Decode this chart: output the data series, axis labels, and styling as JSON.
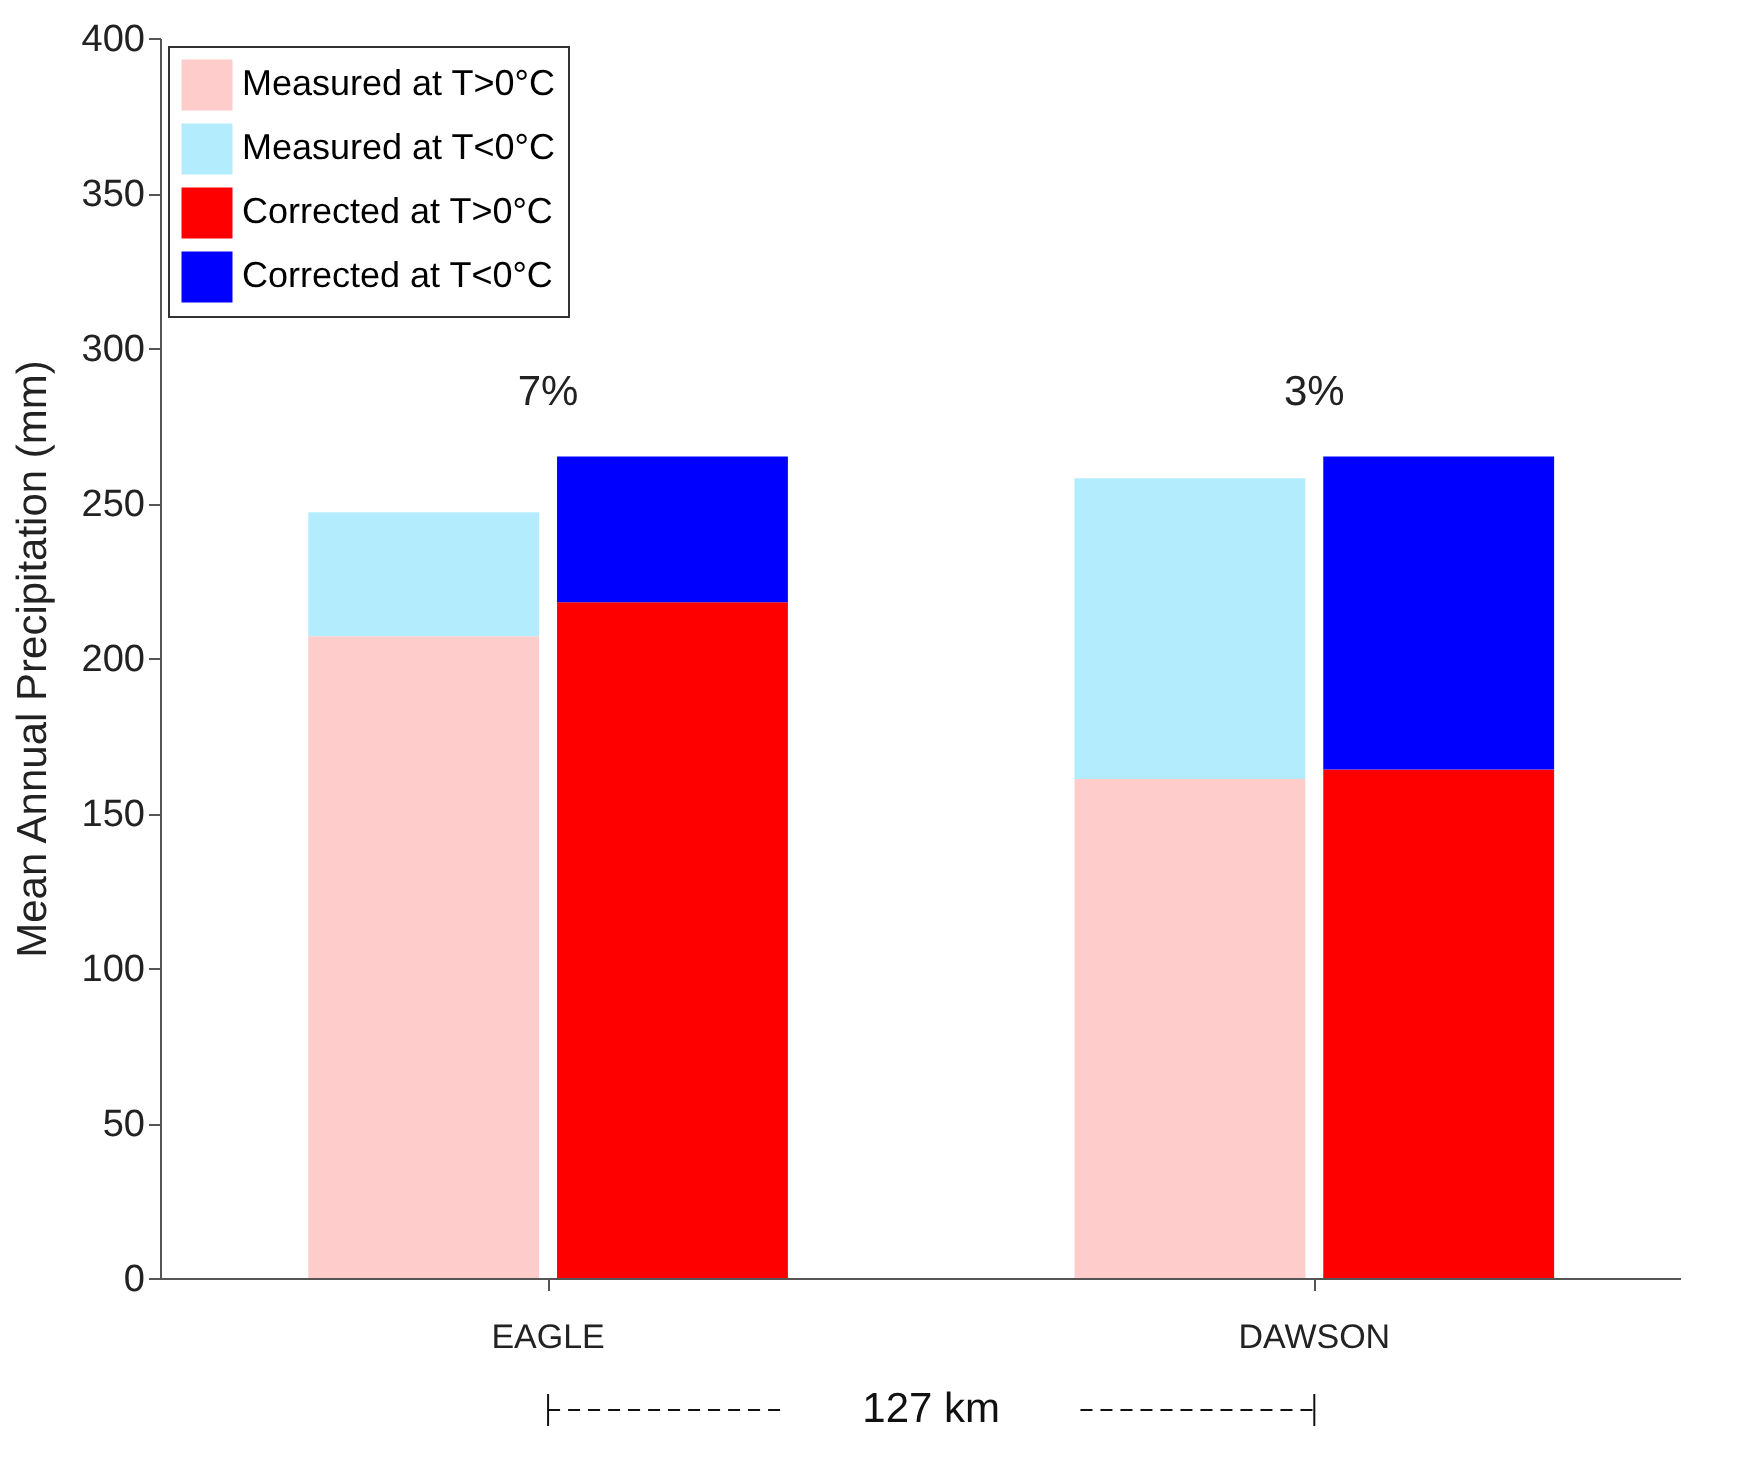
{
  "chart_data": {
    "type": "bar",
    "stacked": true,
    "ylabel": "Mean Annual Precipitation (mm)",
    "categories": [
      null,
      null,
      null,
      null
    ],
    "series": [
      {
        "name": "Measured at T>0°C",
        "color": "#ffcccc",
        "values": [
          207,
          null,
          161,
          null
        ]
      },
      {
        "name": "Measured at T<0°C",
        "color": "#b3ecfc",
        "values": [
          40,
          null,
          97,
          null
        ]
      },
      {
        "name": "Corrected at T>0°C",
        "color": "#ff0000",
        "values": [
          null,
          218,
          null,
          164
        ]
      },
      {
        "name": "Corrected at T<0°C",
        "color": "#0000ff",
        "values": [
          null,
          47,
          null,
          101
        ]
      }
    ],
    "ylim": [
      0,
      400
    ],
    "yticks": [
      0,
      50,
      100,
      150,
      200,
      250,
      300,
      350,
      400
    ],
    "grid": false,
    "legend": "top left",
    "annotations": [
      "7%",
      "3%",
      "EAGLE",
      "DAWSON",
      "127 km"
    ]
  }
}
